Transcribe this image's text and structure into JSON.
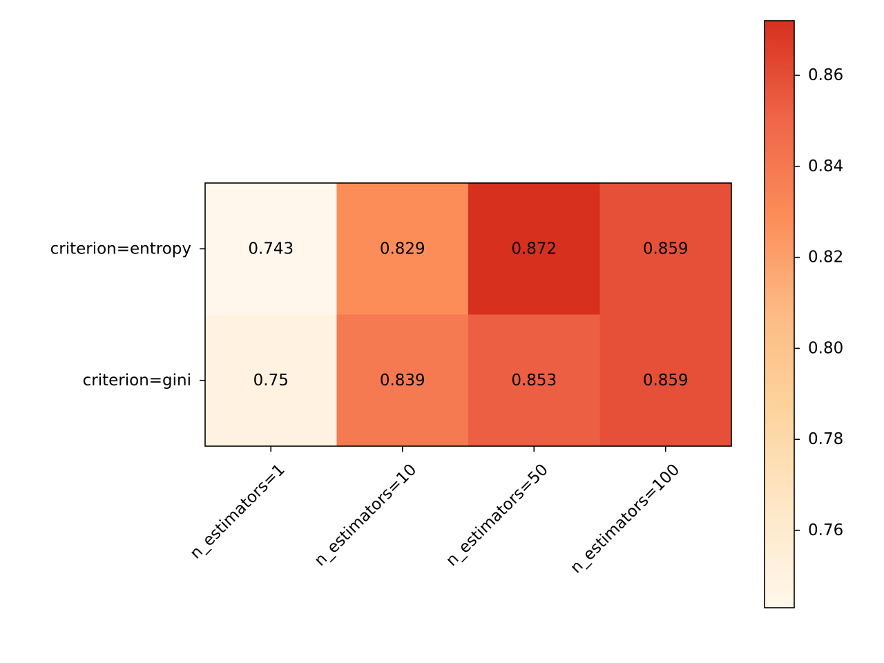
{
  "chart_data": {
    "type": "heatmap",
    "title": "",
    "xlabel": "",
    "ylabel": "",
    "x_categories": [
      "n_estimators=1",
      "n_estimators=10",
      "n_estimators=50",
      "n_estimators=100"
    ],
    "y_categories": [
      "criterion=entropy",
      "criterion=gini"
    ],
    "values": [
      [
        0.743,
        0.829,
        0.872,
        0.859
      ],
      [
        0.75,
        0.839,
        0.853,
        0.859
      ]
    ],
    "value_labels": [
      [
        "0.743",
        "0.829",
        "0.872",
        "0.859"
      ],
      [
        "0.75",
        "0.839",
        "0.853",
        "0.859"
      ]
    ],
    "colorbar": {
      "min": 0.743,
      "max": 0.872,
      "ticks": [
        0.76,
        0.78,
        0.8,
        0.82,
        0.84,
        0.86
      ],
      "tick_labels": [
        "0.76",
        "0.78",
        "0.80",
        "0.82",
        "0.84",
        "0.86"
      ],
      "colormap": "OrRd",
      "color_stops": [
        "#fff7ec",
        "#fee8c8",
        "#fdd49e",
        "#fdbb84",
        "#fc8d59",
        "#ef6548",
        "#d7301f"
      ]
    },
    "x_tick_rotation": 45,
    "grid": false,
    "legend": "colorbar-right"
  }
}
